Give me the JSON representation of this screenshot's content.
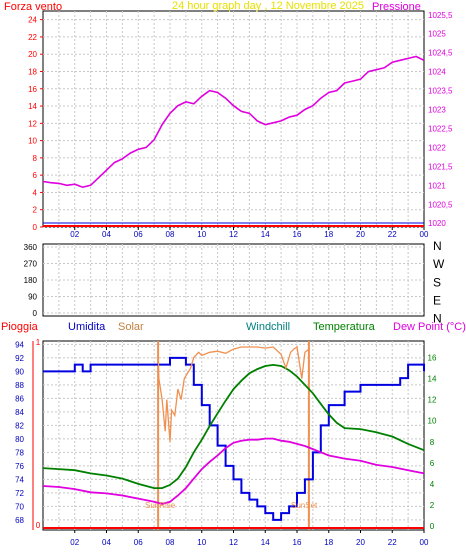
{
  "colors": {
    "frame": "#000000",
    "grid": "#c8c8c8",
    "red": "#ff0000",
    "yellow": "#e8e000",
    "magenta": "#e000e0",
    "blue": "#0000e0",
    "solar": "#f09050",
    "teal": "#00a0a0",
    "green": "#008000"
  },
  "chart_data": [
    {
      "type": "line",
      "title": "24 hour graph day , 12 Novembre 2025",
      "left_label": "Forza vento",
      "right_label": "Pressione",
      "x_ticks": [
        "02",
        "04",
        "06",
        "08",
        "10",
        "12",
        "14",
        "16",
        "18",
        "20",
        "22",
        "00"
      ],
      "y_left_ticks": [
        "0",
        "2",
        "4",
        "6",
        "8",
        "10",
        "12",
        "14",
        "16",
        "18",
        "20",
        "22",
        "24"
      ],
      "y_left_range": [
        0,
        25
      ],
      "y_right_ticks": [
        "1020",
        "1020,5",
        "1021",
        "1021,5",
        "1022",
        "1022,5",
        "1023",
        "1023,5",
        "1024",
        "1024,5",
        "1025",
        "1025,5"
      ],
      "y_right_range": [
        1019.9,
        1025.6
      ],
      "series": [
        {
          "color": "magenta",
          "x": [
            0,
            0.5,
            1,
            1.5,
            2,
            2.5,
            3,
            3.5,
            4,
            4.5,
            5,
            5.5,
            6,
            6.5,
            7,
            7.5,
            8,
            8.5,
            9,
            9.5,
            10,
            10.5,
            11,
            11.5,
            12,
            12.5,
            13,
            13.5,
            14,
            14.5,
            15,
            15.5,
            16,
            16.5,
            17,
            17.5,
            18,
            18.5,
            19,
            19.5,
            20,
            20.5,
            21,
            21.5,
            22,
            22.5,
            23,
            23.5,
            24
          ],
          "y": [
            1021.1,
            1021.07,
            1021.05,
            1021.0,
            1021.03,
            1020.95,
            1021.0,
            1021.2,
            1021.4,
            1021.6,
            1021.7,
            1021.85,
            1021.95,
            1022.0,
            1022.2,
            1022.6,
            1022.9,
            1023.1,
            1023.2,
            1023.15,
            1023.35,
            1023.5,
            1023.45,
            1023.3,
            1023.1,
            1022.95,
            1022.9,
            1022.7,
            1022.6,
            1022.65,
            1022.7,
            1022.8,
            1022.85,
            1023.0,
            1023.1,
            1023.3,
            1023.45,
            1023.5,
            1023.7,
            1023.75,
            1023.8,
            1024.0,
            1024.05,
            1024.1,
            1024.25,
            1024.3,
            1024.35,
            1024.4,
            1024.3
          ]
        },
        {
          "color": "red",
          "x": [
            0,
            24
          ],
          "y": [
            0,
            0
          ]
        }
      ]
    },
    {
      "type": "scatter",
      "y_ticks": [
        "360",
        "270",
        "180",
        "90",
        "0"
      ],
      "y_range": [
        0,
        360
      ],
      "compass_labels": [
        "N",
        "W",
        "S",
        "E",
        "N"
      ],
      "points": []
    },
    {
      "type": "line",
      "labels": {
        "rain": "Pioggia",
        "humidity": "Umidita",
        "solar": "Solar",
        "windchill": "Windchill",
        "temperature": "Temperatura",
        "dewpoint": "Dew Point (°C)"
      },
      "x_ticks": [
        "02",
        "04",
        "06",
        "08",
        "10",
        "12",
        "14",
        "16",
        "18",
        "20",
        "22",
        "00"
      ],
      "y_left_ticks": [
        "68",
        "70",
        "72",
        "74",
        "76",
        "78",
        "80",
        "82",
        "84",
        "86",
        "88",
        "90",
        "92",
        "94"
      ],
      "y_left_range": [
        66.5,
        94.5
      ],
      "y_right_ticks": [
        "0",
        "2",
        "4",
        "6",
        "8",
        "10",
        "12",
        "14",
        "16"
      ],
      "y_right_range": [
        0,
        17
      ],
      "rain_axis_ticks": [
        "0",
        "1"
      ],
      "annotations": [
        "SunRise",
        "SunSet"
      ],
      "sunrise_hour": 7.25,
      "sunset_hour": 16.75,
      "series": [
        {
          "name": "Umidita",
          "color": "blue",
          "axis": "left",
          "x": [
            0,
            1,
            2,
            2.5,
            3,
            4,
            5,
            6,
            7,
            8,
            8.5,
            9,
            9.5,
            10,
            10.5,
            11,
            11.5,
            12,
            12.5,
            13,
            13.5,
            14,
            14.5,
            15,
            15.5,
            16,
            16.5,
            17,
            17.5,
            18,
            19,
            20,
            21,
            22,
            22.5,
            23,
            24
          ],
          "y": [
            90,
            90,
            91,
            90,
            91,
            91,
            91,
            91,
            91,
            92,
            92,
            91,
            88,
            85,
            82,
            79,
            76,
            74,
            72,
            71,
            70,
            69,
            68,
            69,
            70,
            72,
            74,
            78,
            82,
            85,
            87,
            88,
            88,
            88,
            89,
            91,
            90
          ]
        },
        {
          "name": "Temperatura",
          "color": "green",
          "axis": "right",
          "x": [
            0,
            1,
            2,
            3,
            4,
            5,
            6,
            7,
            7.5,
            8,
            8.5,
            9,
            9.5,
            10,
            10.5,
            11,
            11.5,
            12,
            12.5,
            13,
            13.5,
            14,
            14.5,
            15,
            15.5,
            16,
            16.5,
            17,
            17.5,
            18,
            18.5,
            19,
            20,
            21,
            22,
            23,
            24
          ],
          "y": [
            5.5,
            5.4,
            5.3,
            5.0,
            4.8,
            4.5,
            4.0,
            3.6,
            3.6,
            3.9,
            4.5,
            5.6,
            7.0,
            8.2,
            9.5,
            10.7,
            11.9,
            13.0,
            13.8,
            14.5,
            14.9,
            15.2,
            15.3,
            15.2,
            14.8,
            14.2,
            13.4,
            12.6,
            11.6,
            10.6,
            9.8,
            9.3,
            9.2,
            8.9,
            8.5,
            7.8,
            7.2
          ]
        },
        {
          "name": "Dew Point",
          "color": "magenta",
          "axis": "right",
          "x": [
            0,
            1,
            2,
            3,
            4,
            5,
            6,
            7,
            7.5,
            8,
            8.5,
            9,
            9.5,
            10,
            10.5,
            11,
            11.5,
            12,
            12.5,
            13,
            13.5,
            14,
            14.5,
            15,
            15.5,
            16,
            16.5,
            17,
            17.5,
            18,
            19,
            20,
            21,
            22,
            23,
            24
          ],
          "y": [
            3.8,
            3.7,
            3.5,
            3.2,
            3.1,
            2.9,
            2.6,
            2.3,
            2.1,
            2.3,
            2.9,
            3.6,
            4.5,
            5.4,
            6.1,
            6.7,
            7.4,
            7.9,
            8.1,
            8.2,
            8.2,
            8.3,
            8.3,
            8.1,
            8.0,
            7.8,
            7.6,
            7.3,
            7.0,
            6.7,
            6.4,
            6.2,
            5.8,
            5.6,
            5.3,
            5.0
          ]
        },
        {
          "name": "Solar",
          "color": "solar",
          "axis": "right",
          "x": [
            7.25,
            7.3,
            7.5,
            7.7,
            7.8,
            8.0,
            8.1,
            8.3,
            8.5,
            8.7,
            8.9,
            9.1,
            9.3,
            9.5,
            9.8,
            10,
            10.5,
            11,
            11.5,
            12,
            12.5,
            13,
            13.5,
            14,
            14.5,
            15,
            15.3,
            15.6,
            15.8,
            16,
            16.3,
            16.5,
            16.75
          ],
          "y": [
            16.5,
            14,
            12,
            9,
            12,
            8,
            11,
            10.5,
            13,
            12,
            14,
            14.5,
            15,
            16,
            16.5,
            16.2,
            16.5,
            16.6,
            16.4,
            16.8,
            17,
            17,
            17,
            16.9,
            17,
            16.3,
            15,
            16.5,
            16.8,
            17,
            14,
            16.5,
            16.8
          ]
        },
        {
          "name": "Pioggia",
          "color": "red",
          "axis": "rain",
          "x": [
            0,
            24
          ],
          "y": [
            0,
            0
          ]
        }
      ]
    }
  ]
}
